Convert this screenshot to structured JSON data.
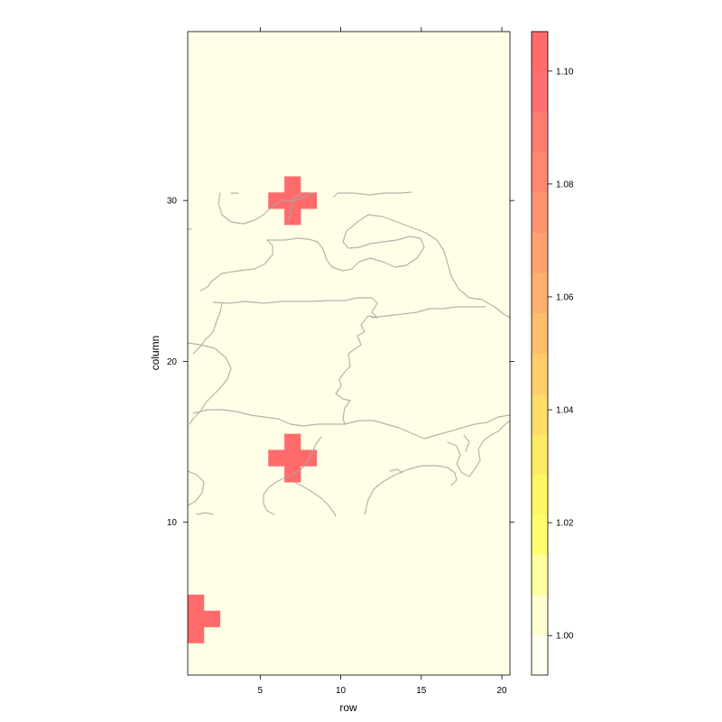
{
  "chart_data": {
    "type": "heatmap",
    "xlabel": "row",
    "ylabel": "column",
    "xlim": [
      0.5,
      20.5
    ],
    "ylim": [
      0.5,
      40.5
    ],
    "x_ticks": [
      5,
      10,
      15,
      20
    ],
    "y_ticks": [
      10,
      20,
      30
    ],
    "background_value": 1.0,
    "cells": [
      {
        "row": 7,
        "column": 31,
        "value": 1.1
      },
      {
        "row": 6,
        "column": 30,
        "value": 1.1
      },
      {
        "row": 7,
        "column": 30,
        "value": 1.1
      },
      {
        "row": 8,
        "column": 30,
        "value": 1.1
      },
      {
        "row": 7,
        "column": 29,
        "value": 1.1
      },
      {
        "row": 7,
        "column": 15,
        "value": 1.1
      },
      {
        "row": 6,
        "column": 14,
        "value": 1.1
      },
      {
        "row": 7,
        "column": 14,
        "value": 1.1
      },
      {
        "row": 8,
        "column": 14,
        "value": 1.1
      },
      {
        "row": 7,
        "column": 13,
        "value": 1.1
      },
      {
        "row": 1,
        "column": 5,
        "value": 1.1
      },
      {
        "row": 1,
        "column": 4,
        "value": 1.1
      },
      {
        "row": 2,
        "column": 4,
        "value": 1.1
      },
      {
        "row": 1,
        "column": 3,
        "value": 1.1
      }
    ],
    "colorkey": {
      "range": [
        0.993,
        1.107
      ],
      "ticks": [
        "1.00",
        "1.02",
        "1.04",
        "1.06",
        "1.08",
        "1.10"
      ],
      "colors": [
        "#FFFFF0",
        "#FFFFCF",
        "#FFFF9F",
        "#FFFF6E",
        "#FFF761",
        "#FFEA65",
        "#FFDB68",
        "#FFCD6A",
        "#FFBE6C",
        "#FFB06E",
        "#FFA26F",
        "#FF9570",
        "#FF8870",
        "#FF7C71",
        "#FF7171",
        "#FF6B6B"
      ]
    }
  }
}
